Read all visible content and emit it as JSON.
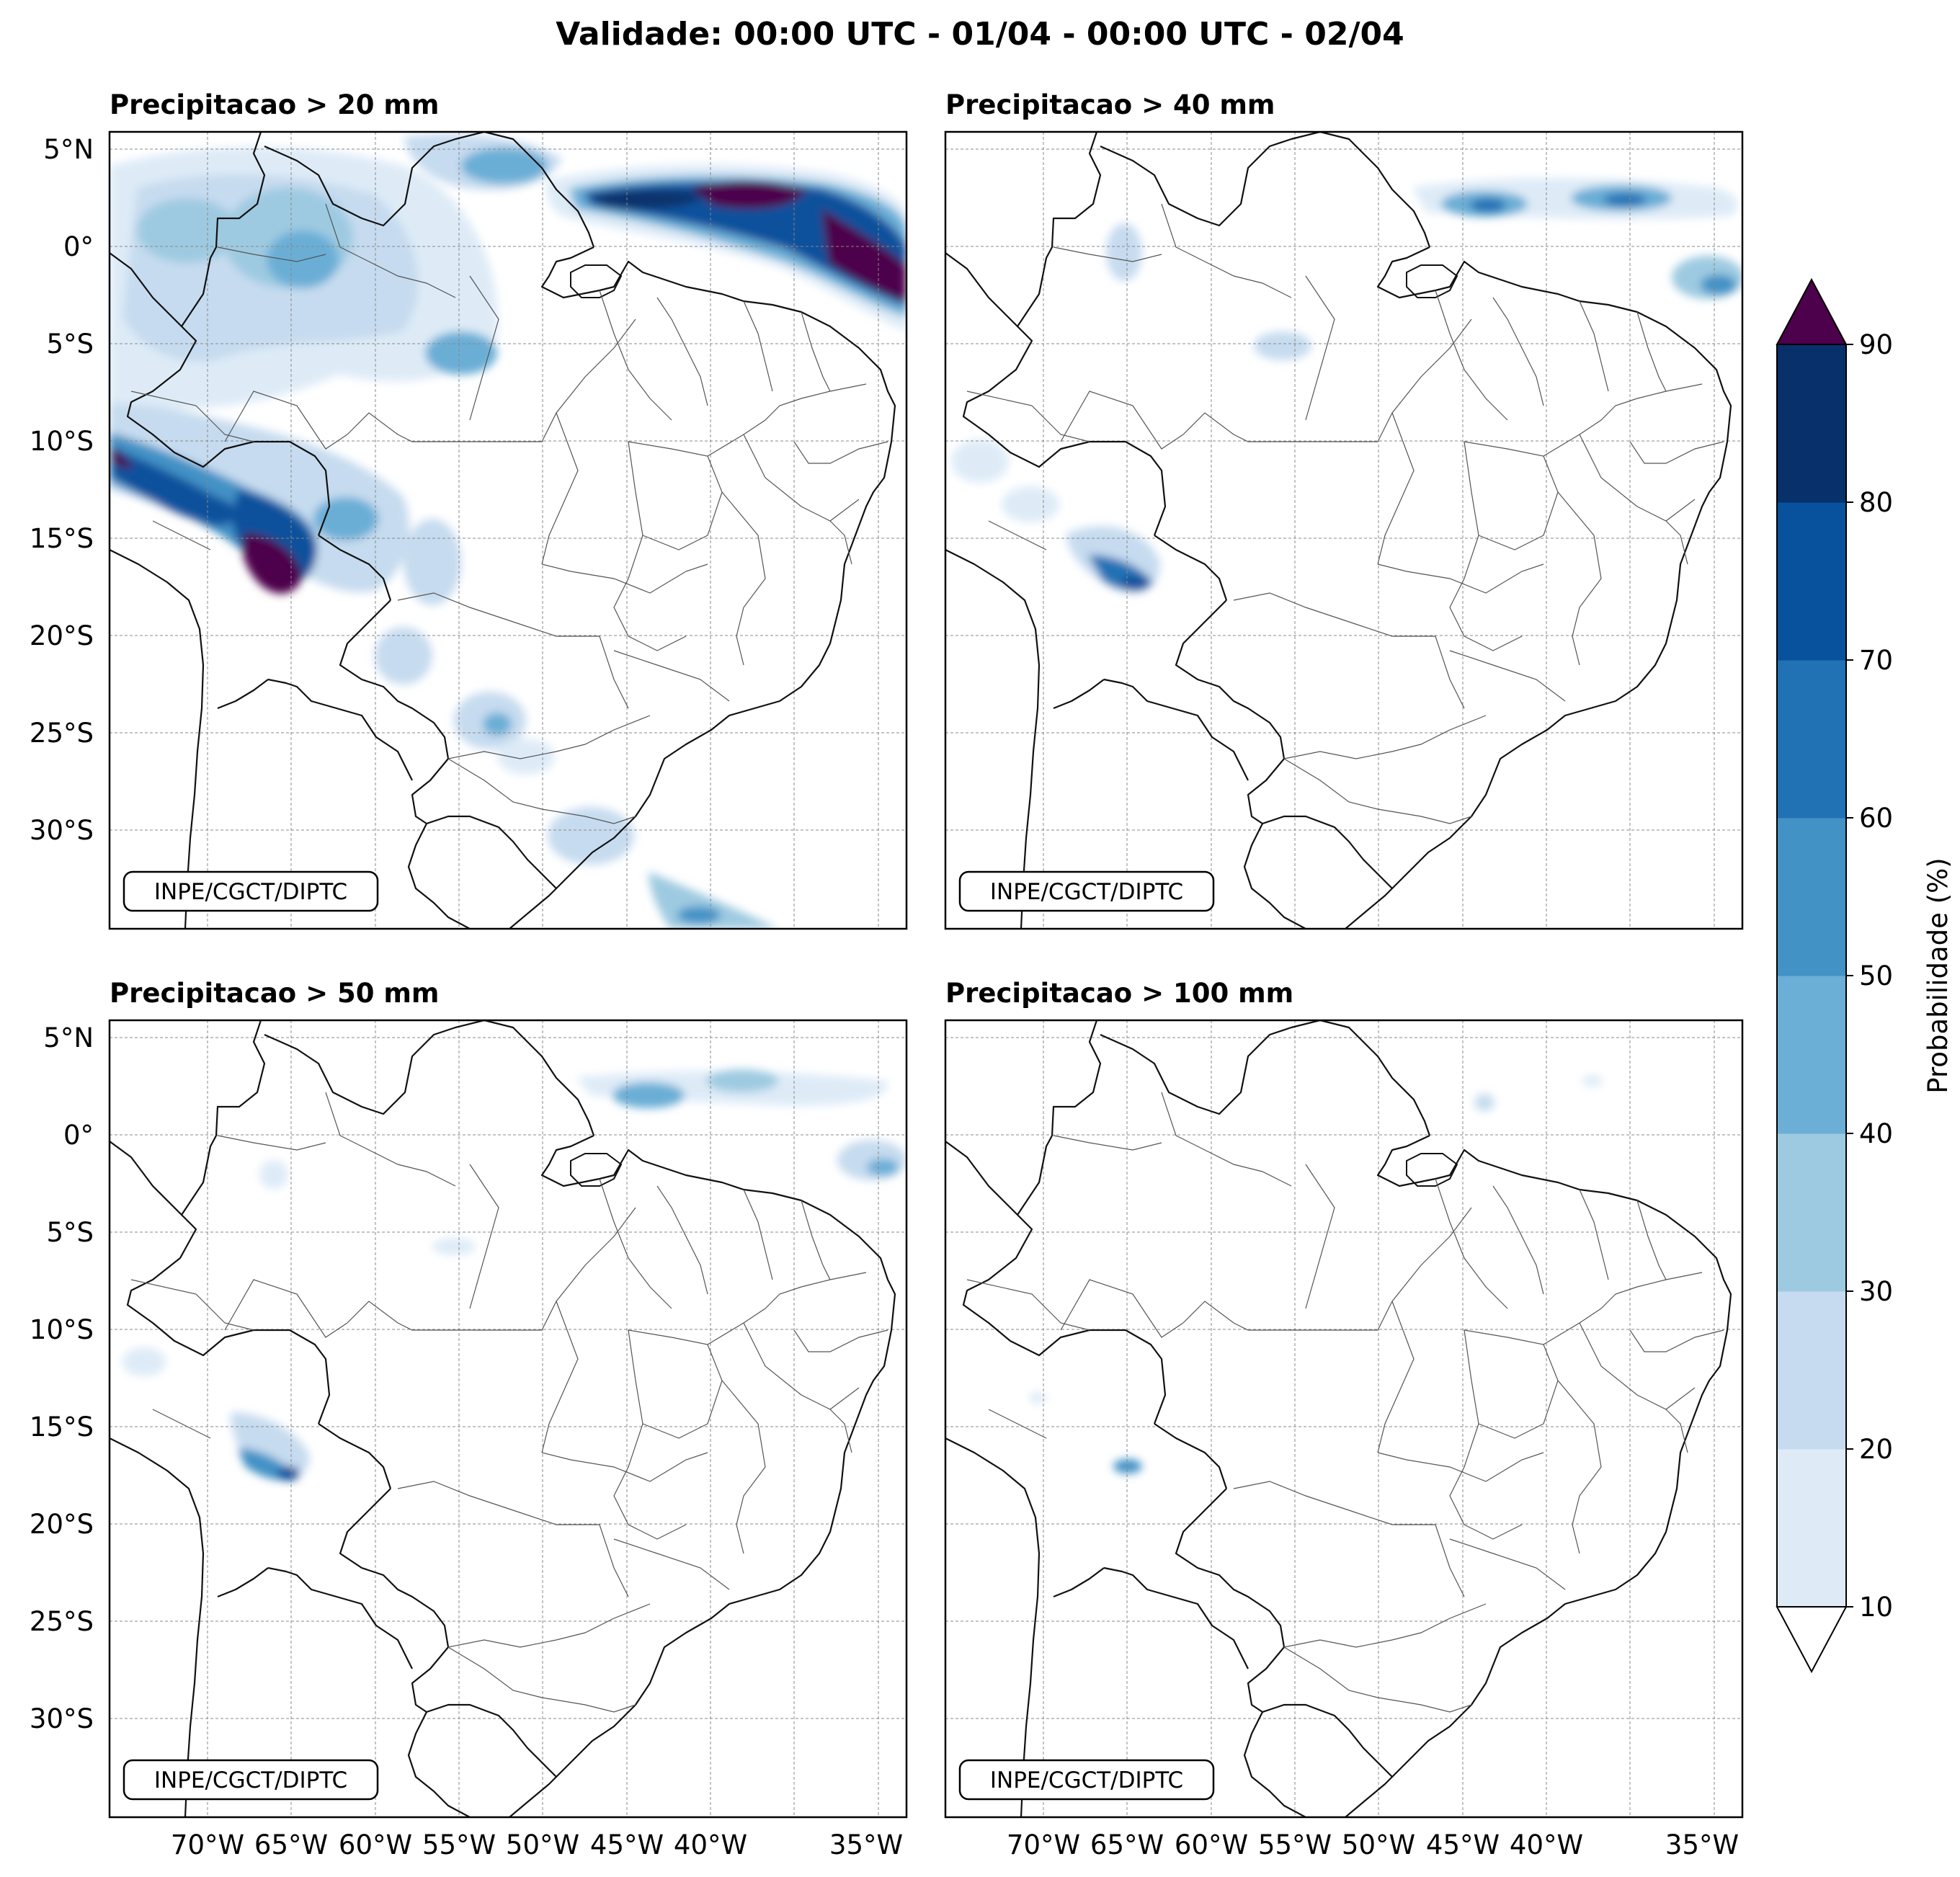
{
  "title": "Validade: 00:00 UTC - 01/04 - 00:00 UTC - 02/04",
  "panels": [
    {
      "title": "Precipitacao > 20 mm",
      "credit": "INPE/CGCT/DIPTC"
    },
    {
      "title": "Precipitacao > 40 mm",
      "credit": "INPE/CGCT/DIPTC"
    },
    {
      "title": "Precipitacao > 50 mm",
      "credit": "INPE/CGCT/DIPTC"
    },
    {
      "title": "Precipitacao > 100 mm",
      "credit": "INPE/CGCT/DIPTC"
    }
  ],
  "lat_labels": [
    "5°N",
    "0°",
    "5°S",
    "10°S",
    "15°S",
    "20°S",
    "25°S",
    "30°S"
  ],
  "lon_labels": [
    "70°W",
    "65°W",
    "60°W",
    "55°W",
    "50°W",
    "45°W",
    "40°W",
    "35°W"
  ],
  "colorbar": {
    "label": "Probabilidade (%)",
    "ticks": [
      "10",
      "20",
      "30",
      "40",
      "50",
      "60",
      "70",
      "80",
      "90"
    ],
    "colors": [
      "#deebf7",
      "#c6dbef",
      "#9ecae1",
      "#6baed6",
      "#4292c6",
      "#2171b5",
      "#08519c",
      "#08306b"
    ],
    "over_color": "#4d004b",
    "under_color": "#ffffff"
  }
}
